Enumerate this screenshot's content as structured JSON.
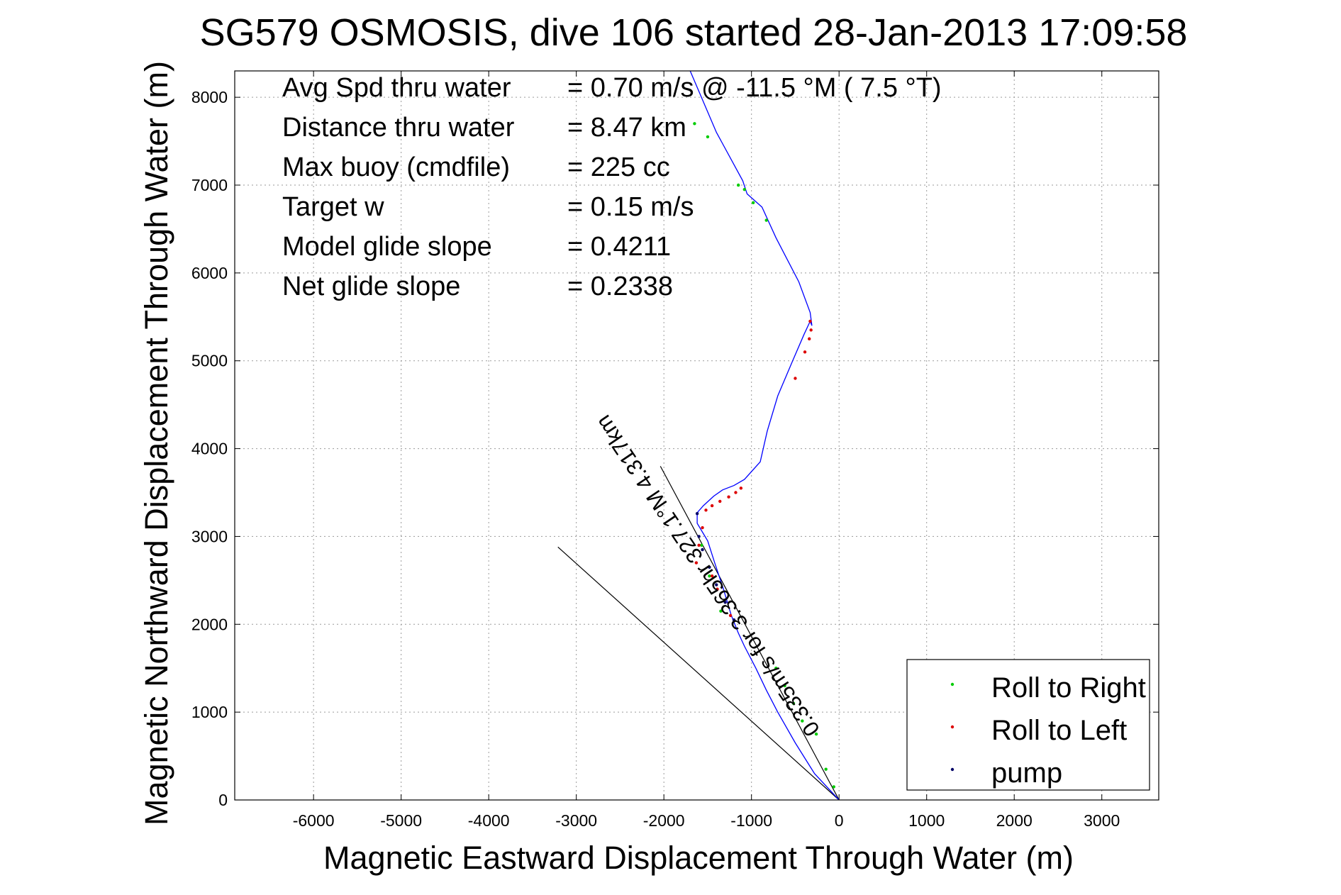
{
  "chart_data": {
    "type": "line",
    "title": "SG579 OSMOSIS, dive 106 started 28-Jan-2013 17:09:58",
    "xlabel": "Magnetic Eastward Displacement Through Water (m)",
    "ylabel": "Magnetic Northward Displacement Through Water (m)",
    "xlim": [
      -6900,
      3650
    ],
    "ylim": [
      0,
      8300
    ],
    "x_ticks": [
      -6000,
      -5000,
      -4000,
      -3000,
      -2000,
      -1000,
      0,
      1000,
      2000,
      3000
    ],
    "y_ticks": [
      0,
      1000,
      2000,
      3000,
      4000,
      5000,
      6000,
      7000,
      8000
    ],
    "x_tick_labels": [
      "-6000",
      "-5000",
      "-4000",
      "-3000",
      "-2000",
      "-1000",
      "0",
      "1000",
      "2000",
      "3000"
    ],
    "y_tick_labels": [
      "0",
      "1000",
      "2000",
      "3000",
      "4000",
      "5000",
      "6000",
      "7000",
      "8000"
    ],
    "grid": true,
    "legend_position": "bottom-right",
    "stats": [
      {
        "label": "Avg Spd thru water",
        "value": "=  0.70 m/s @ -11.5 °M (  7.5 °T)"
      },
      {
        "label": "Distance thru water",
        "value": "=  8.47 km"
      },
      {
        "label": "Max buoy (cmdfile)",
        "value": "= 225 cc"
      },
      {
        "label": "Target w",
        "value": "= 0.15 m/s"
      },
      {
        "label": "Model glide slope",
        "value": "= 0.4211"
      },
      {
        "label": "Net glide slope",
        "value": "= 0.2338"
      }
    ],
    "track": {
      "color": "#0000ff",
      "x": [
        0,
        -280,
        -500,
        -700,
        -830,
        -950,
        -1080,
        -1150,
        -1230,
        -1320,
        -1420,
        -1500,
        -1560,
        -1620,
        -1620,
        -1550,
        -1430,
        -1330,
        -1200,
        -1080,
        -900,
        -820,
        -700,
        -530,
        -400,
        -330,
        -310,
        -330,
        -460,
        -720,
        -880,
        -1050,
        -1100,
        -1400,
        -1700
      ],
      "y": [
        0,
        300,
        650,
        1000,
        1250,
        1500,
        1750,
        1900,
        2100,
        2400,
        2700,
        2950,
        3050,
        3150,
        3270,
        3350,
        3460,
        3530,
        3580,
        3650,
        3850,
        4200,
        4600,
        5000,
        5300,
        5450,
        5400,
        5550,
        5900,
        6400,
        6750,
        6900,
        7050,
        7600,
        8300
      ]
    },
    "current_lines": [
      {
        "color": "#000000",
        "x": [
          0,
          -2040
        ],
        "y": [
          0,
          3800
        ]
      },
      {
        "color": "#000000",
        "x": [
          0,
          -3210
        ],
        "y": [
          0,
          2880
        ]
      }
    ],
    "current_annotation": {
      "text": "0.335m/s for 3.365hr 327.1°M 4.317km",
      "x": -1430,
      "y": 2600,
      "angle_deg": 56
    },
    "series": [
      {
        "name": "Roll to Right",
        "color": "#00cc00",
        "x": [
          -1650,
          -1500,
          -1150,
          -1080,
          -980,
          -830,
          -720,
          -620,
          -520,
          -420,
          -260,
          -150,
          -60,
          -1350,
          -1480,
          -1570
        ],
        "y": [
          7700,
          7550,
          7000,
          6950,
          6800,
          6600,
          1500,
          1300,
          1100,
          900,
          750,
          350,
          150,
          2150,
          2550,
          2900
        ]
      },
      {
        "name": "Roll to Left",
        "color": "#dd0000",
        "x": [
          -330,
          -320,
          -340,
          -390,
          -500,
          -1120,
          -1180,
          -1260,
          -1360,
          -1450,
          -1520,
          -1560,
          -1600,
          -1630,
          -1240,
          -1390,
          -1450
        ],
        "y": [
          5450,
          5350,
          5250,
          5100,
          4800,
          3550,
          3500,
          3450,
          3400,
          3350,
          3300,
          3100,
          2900,
          2700,
          2100,
          2400,
          2550
        ]
      },
      {
        "name": "pump",
        "color": "#000066",
        "x": [
          -1620,
          -1600,
          -1560,
          -1480,
          -1400,
          -1300,
          -1200
        ],
        "y": [
          3260,
          3000,
          2850,
          2650,
          2450,
          2250,
          2050
        ]
      }
    ]
  }
}
